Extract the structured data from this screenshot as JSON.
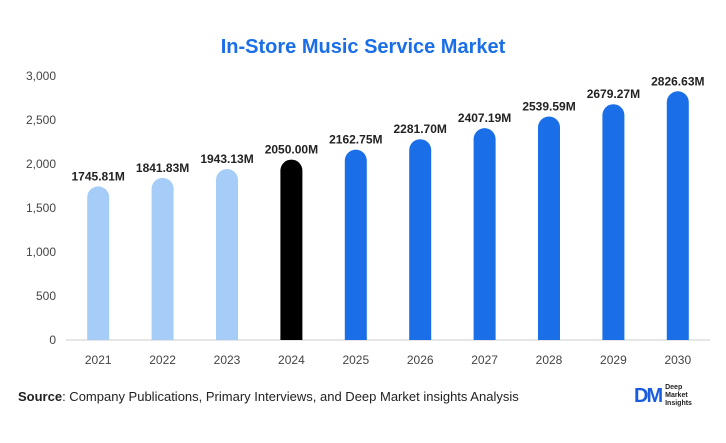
{
  "chart_data": {
    "type": "bar",
    "title": "In-Store Music Service Market",
    "categories": [
      "2021",
      "2022",
      "2023",
      "2024",
      "2025",
      "2026",
      "2027",
      "2028",
      "2029",
      "2030"
    ],
    "values": [
      1745.81,
      1841.83,
      1943.13,
      2050.0,
      2162.75,
      2281.7,
      2407.19,
      2539.59,
      2679.27,
      2826.63
    ],
    "data_labels": [
      "1745.81M",
      "1841.83M",
      "1943.13M",
      "2050.00M",
      "2162.75M",
      "2281.70M",
      "2407.19M",
      "2539.59M",
      "2679.27M",
      "2826.63M"
    ],
    "bar_colors": [
      "#a5cdf7",
      "#a5cdf7",
      "#a5cdf7",
      "#000000",
      "#1a6fe8",
      "#1a6fe8",
      "#1a6fe8",
      "#1a6fe8",
      "#1a6fe8",
      "#1a6fe8"
    ],
    "ylim": [
      0,
      3000
    ],
    "yticks": [
      0,
      500,
      1000,
      1500,
      2000,
      2500,
      3000
    ],
    "ytick_labels": [
      "0",
      "500",
      "1,000",
      "1,500",
      "2,000",
      "2,500",
      "3,000"
    ],
    "xlabel": "",
    "ylabel": "",
    "grid": false,
    "legend": "none"
  },
  "source": {
    "label": "Source",
    "text": ": Company Publications, Primary Interviews, and Deep Market insights Analysis"
  },
  "logo": {
    "mark": "DM",
    "line1": "Deep",
    "line2": "Market",
    "line3": "Insights"
  },
  "colors": {
    "title": "#1a6fe8",
    "axis": "#cccccc",
    "label": "#222222"
  }
}
